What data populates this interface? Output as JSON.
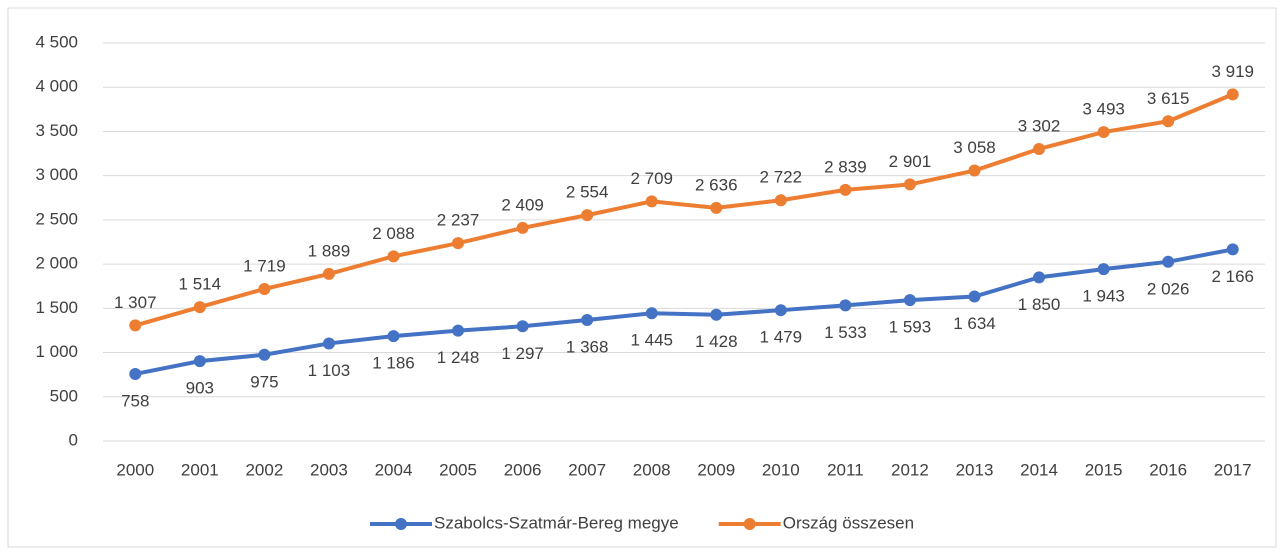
{
  "chart_data": {
    "type": "line",
    "categories": [
      "2000",
      "2001",
      "2002",
      "2003",
      "2004",
      "2005",
      "2006",
      "2007",
      "2008",
      "2009",
      "2010",
      "2011",
      "2012",
      "2013",
      "2014",
      "2015",
      "2016",
      "2017"
    ],
    "series": [
      {
        "name": "Szabolcs-Szatmár-Bereg megye",
        "color": "#4472c4",
        "values": [
          758,
          903,
          975,
          1103,
          1186,
          1248,
          1297,
          1368,
          1445,
          1428,
          1479,
          1533,
          1593,
          1634,
          1850,
          1943,
          2026,
          2166
        ],
        "value_labels": [
          "758",
          "903",
          "975",
          "1 103",
          "1 186",
          "1 248",
          "1 297",
          "1 368",
          "1 445",
          "1 428",
          "1 479",
          "1 533",
          "1 593",
          "1 634",
          "1 850",
          "1 943",
          "2 026",
          "2 166"
        ]
      },
      {
        "name": "Ország összesen",
        "color": "#ed7d31",
        "values": [
          1307,
          1514,
          1719,
          1889,
          2088,
          2237,
          2409,
          2554,
          2709,
          2636,
          2722,
          2839,
          2901,
          3058,
          3302,
          3493,
          3615,
          3919
        ],
        "value_labels": [
          "1 307",
          "1 514",
          "1 719",
          "1 889",
          "2 088",
          "2 237",
          "2 409",
          "2 554",
          "2 709",
          "2 636",
          "2 722",
          "2 839",
          "2 901",
          "3 058",
          "3 302",
          "3 493",
          "3 615",
          "3 919"
        ]
      }
    ],
    "ylim": [
      0,
      4500
    ],
    "yticks": [
      0,
      500,
      {
        "value": 1000,
        "label": "1 000"
      },
      {
        "value": 1500,
        "label": "1 500"
      },
      {
        "value": 2000,
        "label": "2 000"
      },
      {
        "value": 2500,
        "label": "2 500"
      },
      {
        "value": 3000,
        "label": "3 000"
      },
      {
        "value": 3500,
        "label": "3 500"
      },
      {
        "value": 4000,
        "label": "4 000"
      },
      {
        "value": 4500,
        "label": "4 500"
      }
    ],
    "grid": true,
    "legend": "bottom"
  }
}
